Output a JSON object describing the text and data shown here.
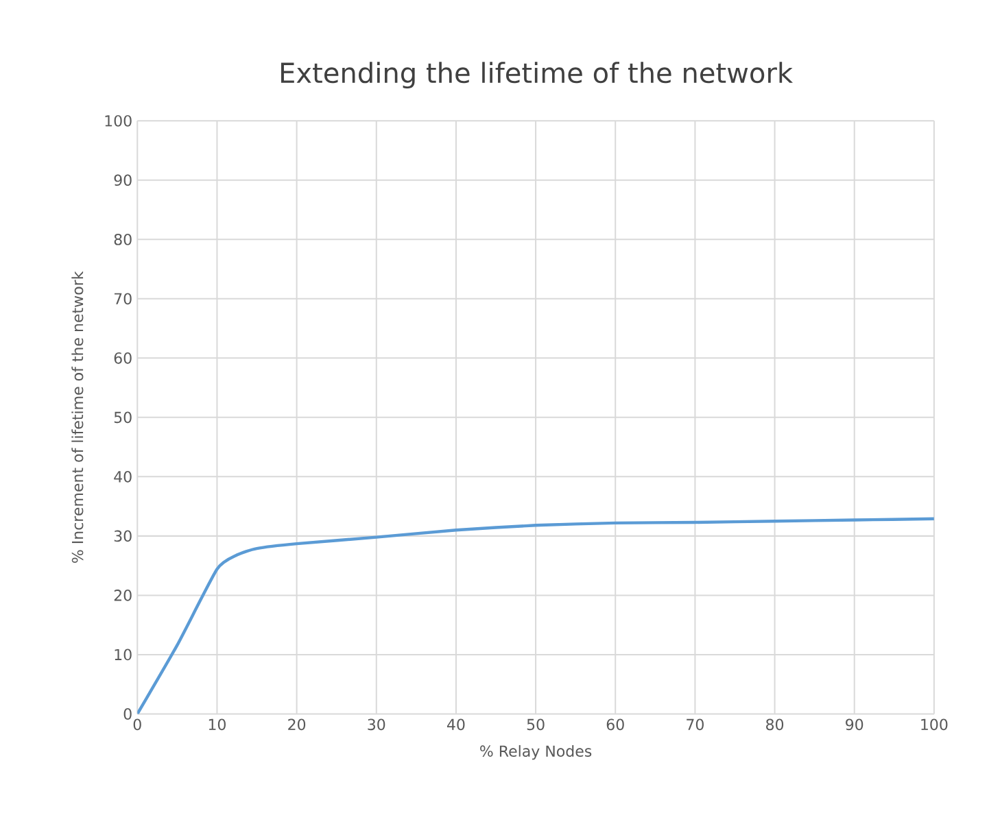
{
  "chart_data": {
    "type": "line",
    "title": "Extending the lifetime of the network",
    "xlabel": "% Relay Nodes",
    "ylabel": "% Increment of  lifetime of the network",
    "x": [
      0,
      5,
      10,
      12.5,
      15,
      20,
      30,
      40,
      50,
      60,
      70,
      80,
      90,
      100
    ],
    "series": [
      {
        "color": "#5b9bd5",
        "values": [
          0,
          11.6,
          24.4,
          26.8,
          27.9,
          28.7,
          29.8,
          31.0,
          31.8,
          32.2,
          32.3,
          32.5,
          32.7,
          32.9
        ]
      }
    ],
    "xlim": [
      0,
      100
    ],
    "ylim": [
      0,
      100
    ],
    "xticks": [
      0,
      10,
      20,
      30,
      40,
      50,
      60,
      70,
      80,
      90,
      100
    ],
    "yticks": [
      0,
      10,
      20,
      30,
      40,
      50,
      60,
      70,
      80,
      90,
      100
    ],
    "grid": true,
    "marker": "none",
    "line_style": "solid"
  }
}
